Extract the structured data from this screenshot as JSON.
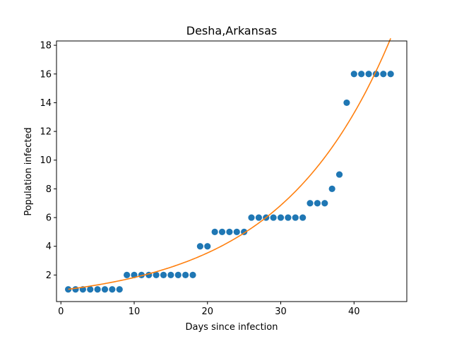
{
  "chart_data": {
    "type": "scatter",
    "title": "Desha,Arkansas",
    "xlabel": "Days since infection",
    "ylabel": "Population infected",
    "xlim": [
      -0.6,
      47.2
    ],
    "ylim": [
      0.15,
      18.3
    ],
    "xticks": [
      0,
      10,
      20,
      30,
      40
    ],
    "yticks": [
      2,
      4,
      6,
      8,
      10,
      12,
      14,
      16,
      18
    ],
    "grid": false,
    "series": [
      {
        "kind": "scatter",
        "color": "#1f77b4",
        "x": [
          1,
          2,
          3,
          4,
          5,
          6,
          7,
          8,
          9,
          10,
          11,
          12,
          13,
          14,
          15,
          16,
          17,
          18,
          19,
          20,
          21,
          22,
          23,
          24,
          25,
          26,
          27,
          28,
          29,
          30,
          31,
          32,
          33,
          34,
          35,
          36,
          37,
          38,
          39,
          40,
          41,
          42,
          43,
          44,
          45
        ],
        "y": [
          1,
          1,
          1,
          1,
          1,
          1,
          1,
          1,
          2,
          2,
          2,
          2,
          2,
          2,
          2,
          2,
          2,
          2,
          4,
          4,
          5,
          5,
          5,
          5,
          5,
          6,
          6,
          6,
          6,
          6,
          6,
          6,
          6,
          7,
          7,
          7,
          8,
          9,
          14,
          16,
          16,
          16,
          16,
          16,
          16
        ]
      },
      {
        "kind": "line",
        "color": "#ff7f0e",
        "fit": {
          "a": 0.9427,
          "b": 0.06613,
          "x_start": 1,
          "x_end": 45
        }
      }
    ]
  }
}
